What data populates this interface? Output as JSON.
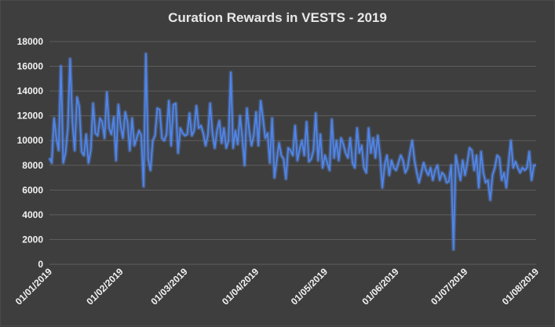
{
  "chart_data": {
    "type": "line",
    "title": "Curation Rewards in VESTS - 2019",
    "xlabel": "",
    "ylabel": "",
    "ylim": [
      0,
      18000
    ],
    "y_ticks": [
      "0",
      "2000",
      "4000",
      "6000",
      "8000",
      "10000",
      "12000",
      "14000",
      "16000",
      "18000"
    ],
    "x_ticks": [
      "01/01/2019",
      "01/02/2019",
      "01/03/2019",
      "01/04/2019",
      "01/05/2019",
      "01/06/2019",
      "01/07/2019",
      "01/08/2019"
    ],
    "x_tick_days": [
      0,
      31,
      59,
      90,
      120,
      151,
      181,
      212
    ],
    "grid": true,
    "legend": "none",
    "series_color": "#4f86ec",
    "series": [
      {
        "values": [
          8600,
          8200,
          11800,
          10200,
          9200,
          16000,
          8200,
          9000,
          11000,
          16600,
          11500,
          9200,
          13500,
          12700,
          9100,
          8800,
          10500,
          8200,
          9200,
          13000,
          10600,
          10400,
          11800,
          11500,
          10200,
          13900,
          11000,
          10500,
          11900,
          8400,
          12900,
          11200,
          10200,
          12300,
          11500,
          9200,
          11800,
          9600,
          10200,
          10800,
          10400,
          6300,
          17000,
          8500,
          7600,
          10000,
          10400,
          12600,
          12500,
          10200,
          10000,
          10500,
          13200,
          9600,
          12900,
          13000,
          9000,
          11000,
          10600,
          10400,
          10500,
          12200,
          10400,
          10800,
          12800,
          11000,
          11200,
          10600,
          9600,
          10400,
          13000,
          10600,
          9400,
          10800,
          11600,
          9800,
          11000,
          9400,
          10000,
          15500,
          9400,
          10800,
          9700,
          12000,
          10200,
          8000,
          12600,
          10800,
          9600,
          10400,
          12300,
          9600,
          13200,
          11800,
          10200,
          10600,
          8200,
          11800,
          7000,
          8400,
          9800,
          8800,
          8500,
          6900,
          9400,
          9200,
          8800,
          11200,
          8400,
          9300,
          10000,
          8800,
          11500,
          8300,
          8500,
          9200,
          12200,
          8400,
          10500,
          7800,
          8800,
          8200,
          7600,
          11700,
          8600,
          10000,
          8400,
          10200,
          9700,
          9000,
          8600,
          10200,
          8200,
          7800,
          11000,
          9000,
          9600,
          7800,
          7400,
          11000,
          9000,
          10200,
          8600,
          10400,
          8800,
          6200,
          8000,
          8800,
          7200,
          8400,
          7800,
          7600,
          8200,
          8800,
          8400,
          7400,
          7800,
          9000,
          10000,
          8400,
          7400,
          6600,
          7400,
          8200,
          7600,
          7200,
          7800,
          6800,
          7600,
          8000,
          6800,
          7400,
          7200,
          6600,
          6700,
          8000,
          1200,
          8800,
          7800,
          6800,
          8400,
          7200,
          8200,
          9400,
          9200,
          7600,
          8800,
          6200,
          9100,
          7400,
          6600,
          6800,
          5200,
          7200,
          7800,
          8800,
          8600,
          6800,
          7400,
          6200,
          8200,
          10000,
          7800,
          8300,
          7800,
          7400,
          7800,
          7600,
          7800,
          9100,
          6800,
          8000,
          8000
        ]
      }
    ]
  }
}
